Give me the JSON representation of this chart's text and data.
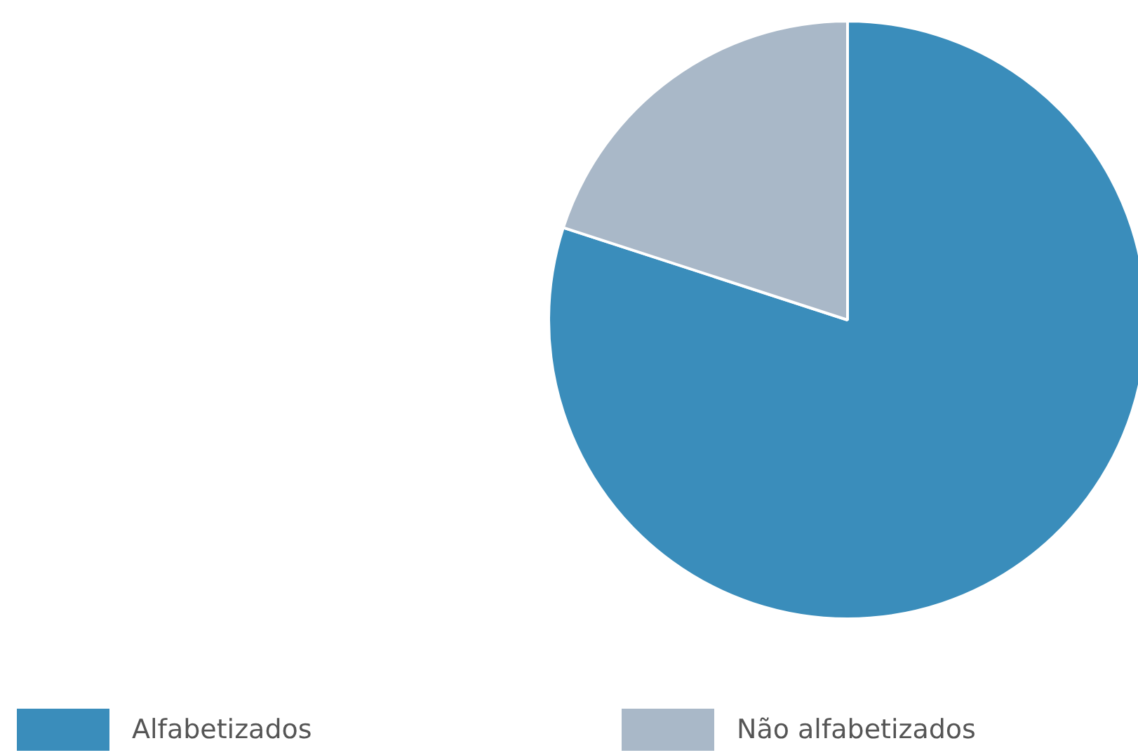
{
  "chart_data": {
    "type": "pie",
    "categories": [
      "Alfabetizados",
      "Não alfabetizados"
    ],
    "values": [
      80,
      20
    ],
    "colors": [
      "#3a8dbb",
      "#a9b8c8"
    ],
    "legend": "bottom"
  }
}
